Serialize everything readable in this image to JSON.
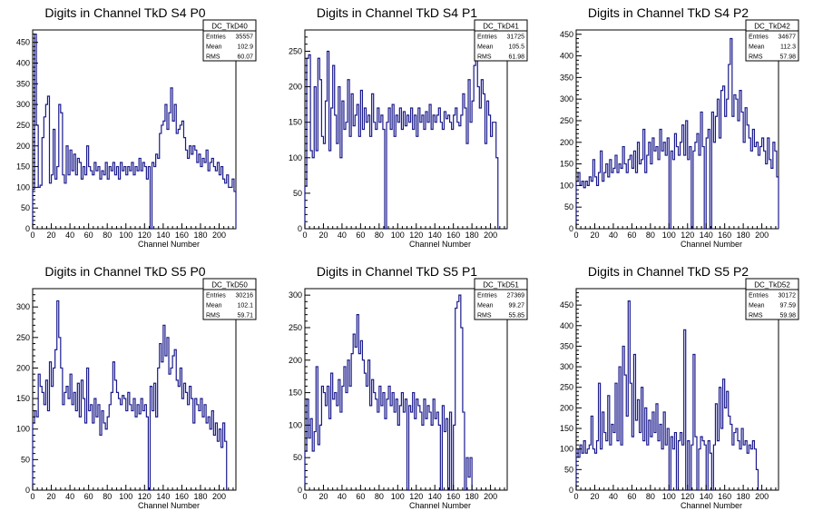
{
  "chart_data": [
    {
      "type": "histogram",
      "title": "Digits in Channel TkD S4 P0",
      "xlabel": "Channel Number",
      "ylabel": "",
      "xlim": [
        0,
        218
      ],
      "ylim": [
        0,
        480
      ],
      "xticks": [
        0,
        20,
        40,
        60,
        80,
        100,
        120,
        140,
        160,
        180,
        200
      ],
      "yticks": [
        0,
        50,
        100,
        150,
        200,
        250,
        300,
        350,
        400,
        450
      ],
      "bin_width": 2,
      "stats": {
        "name": "DC_TkD40",
        "rows": [
          [
            "Entries",
            "35557"
          ],
          [
            "Mean",
            "102.9"
          ],
          [
            "RMS",
            "60.07"
          ]
        ]
      },
      "values": [
        95,
        470,
        250,
        100,
        105,
        220,
        270,
        300,
        320,
        110,
        130,
        240,
        120,
        150,
        300,
        280,
        130,
        110,
        200,
        130,
        190,
        140,
        180,
        130,
        170,
        160,
        120,
        150,
        130,
        200,
        150,
        140,
        130,
        160,
        140,
        150,
        120,
        140,
        130,
        160,
        120,
        150,
        140,
        160,
        130,
        150,
        120,
        160,
        140,
        150,
        130,
        150,
        140,
        160,
        130,
        150,
        140,
        170,
        140,
        160,
        150,
        120,
        150,
        0,
        160,
        150,
        180,
        170,
        230,
        250,
        260,
        300,
        240,
        280,
        340,
        260,
        300,
        230,
        240,
        250,
        260,
        220,
        190,
        170,
        200,
        180,
        200,
        190,
        160,
        180,
        150,
        170,
        160,
        190,
        140,
        160,
        170,
        150,
        140,
        160,
        130,
        150,
        120,
        110,
        130,
        100,
        100,
        120,
        90
      ]
    },
    {
      "type": "histogram",
      "title": "Digits in Channel TkD S4 P1",
      "xlabel": "Channel Number",
      "ylabel": "",
      "xlim": [
        0,
        218
      ],
      "ylim": [
        0,
        280
      ],
      "xticks": [
        0,
        20,
        40,
        60,
        80,
        100,
        120,
        140,
        160,
        180,
        200
      ],
      "yticks": [
        0,
        50,
        100,
        150,
        200,
        250
      ],
      "bin_width": 2,
      "stats": {
        "name": "DC_TkD41",
        "rows": [
          [
            "Entries",
            "31725"
          ],
          [
            "Mean",
            "105.5"
          ],
          [
            "RMS",
            "61.98"
          ]
        ]
      },
      "values": [
        60,
        240,
        245,
        110,
        100,
        200,
        110,
        240,
        210,
        130,
        120,
        180,
        250,
        110,
        170,
        230,
        160,
        120,
        200,
        100,
        180,
        140,
        150,
        210,
        130,
        190,
        145,
        160,
        175,
        130,
        195,
        140,
        170,
        150,
        160,
        130,
        190,
        150,
        140,
        170,
        150,
        160,
        140,
        0,
        150,
        170,
        140,
        175,
        130,
        160,
        150,
        170,
        140,
        165,
        145,
        160,
        150,
        170,
        140,
        160,
        130,
        170,
        150,
        160,
        140,
        165,
        150,
        175,
        140,
        160,
        150,
        160,
        170,
        150,
        140,
        165,
        155,
        160,
        150,
        140,
        160,
        170,
        150,
        145,
        160,
        190,
        170,
        120,
        210,
        150,
        180,
        230,
        250,
        200,
        170,
        210,
        190,
        120,
        180,
        160,
        130,
        150,
        150,
        100,
        0
      ]
    },
    {
      "type": "histogram",
      "title": "Digits in Channel TkD S4 P2",
      "xlabel": "Channel Number",
      "ylabel": "",
      "xlim": [
        0,
        218
      ],
      "ylim": [
        0,
        460
      ],
      "xticks": [
        0,
        20,
        40,
        60,
        80,
        100,
        120,
        140,
        160,
        180,
        200
      ],
      "yticks": [
        0,
        50,
        100,
        150,
        200,
        250,
        300,
        350,
        400,
        450
      ],
      "bin_width": 2,
      "stats": {
        "name": "DC_TkD42",
        "rows": [
          [
            "Entries",
            "34677"
          ],
          [
            "Mean",
            "112.3"
          ],
          [
            "RMS",
            "57.98"
          ]
        ]
      },
      "values": [
        110,
        130,
        100,
        110,
        95,
        110,
        100,
        120,
        110,
        160,
        120,
        100,
        130,
        180,
        110,
        130,
        150,
        120,
        160,
        130,
        140,
        170,
        130,
        150,
        140,
        190,
        150,
        130,
        160,
        170,
        140,
        180,
        130,
        200,
        150,
        160,
        230,
        130,
        170,
        200,
        150,
        210,
        180,
        190,
        160,
        230,
        180,
        200,
        170,
        210,
        0,
        180,
        160,
        220,
        190,
        170,
        200,
        240,
        170,
        250,
        160,
        190,
        0,
        180,
        200,
        220,
        170,
        270,
        190,
        0,
        210,
        230,
        0,
        270,
        200,
        260,
        300,
        210,
        320,
        330,
        260,
        300,
        380,
        440,
        260,
        310,
        300,
        250,
        320,
        270,
        200,
        280,
        240,
        210,
        180,
        230,
        190,
        200,
        170,
        190,
        210,
        180,
        150,
        210,
        160,
        140,
        200,
        180,
        120,
        50
      ]
    },
    {
      "type": "histogram",
      "title": "Digits in Channel TkD S5 P0",
      "xlabel": "Channel Number",
      "ylabel": "",
      "xlim": [
        0,
        218
      ],
      "ylim": [
        0,
        330
      ],
      "xticks": [
        0,
        20,
        40,
        60,
        80,
        100,
        120,
        140,
        160,
        180,
        200
      ],
      "yticks": [
        0,
        50,
        100,
        150,
        200,
        250,
        300
      ],
      "bin_width": 2,
      "stats": {
        "name": "DC_TkD50",
        "rows": [
          [
            "Entries",
            "30216"
          ],
          [
            "Mean",
            "102.1"
          ],
          [
            "RMS",
            "59.71"
          ]
        ]
      },
      "values": [
        110,
        130,
        120,
        190,
        170,
        160,
        140,
        180,
        130,
        210,
        170,
        200,
        230,
        310,
        250,
        200,
        140,
        160,
        170,
        150,
        190,
        140,
        160,
        130,
        175,
        120,
        180,
        150,
        110,
        200,
        130,
        140,
        110,
        150,
        120,
        140,
        90,
        130,
        110,
        100,
        120,
        140,
        160,
        210,
        180,
        160,
        150,
        140,
        155,
        150,
        130,
        160,
        140,
        130,
        150,
        120,
        140,
        125,
        150,
        130,
        140,
        120,
        0,
        170,
        130,
        175,
        120,
        200,
        240,
        210,
        270,
        220,
        250,
        190,
        200,
        220,
        230,
        180,
        170,
        200,
        150,
        175,
        160,
        140,
        170,
        150,
        110,
        150,
        140,
        130,
        150,
        120,
        140,
        110,
        120,
        100,
        130,
        90,
        110,
        80,
        100,
        70,
        110,
        80
      ]
    },
    {
      "type": "histogram",
      "title": "Digits in Channel TkD S5 P1",
      "xlabel": "Channel Number",
      "ylabel": "",
      "xlim": [
        0,
        218
      ],
      "ylim": [
        0,
        310
      ],
      "xticks": [
        0,
        20,
        40,
        60,
        80,
        100,
        120,
        140,
        160,
        180,
        200
      ],
      "yticks": [
        0,
        50,
        100,
        150,
        200,
        250,
        300
      ],
      "bin_width": 2,
      "stats": {
        "name": "DC_TkD51",
        "rows": [
          [
            "Entries",
            "27369"
          ],
          [
            "Mean",
            "99.27"
          ],
          [
            "RMS",
            "55.85"
          ]
        ]
      },
      "values": [
        60,
        140,
        80,
        110,
        60,
        90,
        190,
        70,
        100,
        160,
        150,
        130,
        160,
        110,
        180,
        140,
        150,
        130,
        170,
        120,
        160,
        190,
        150,
        200,
        160,
        210,
        240,
        220,
        270,
        210,
        230,
        200,
        180,
        160,
        200,
        130,
        170,
        150,
        140,
        120,
        160,
        130,
        150,
        110,
        140,
        160,
        130,
        150,
        120,
        140,
        100,
        130,
        150,
        120,
        140,
        0,
        130,
        120,
        150,
        110,
        140,
        130,
        120,
        100,
        140,
        110,
        130,
        120,
        100,
        140,
        110,
        120,
        100,
        0,
        130,
        90,
        110,
        0,
        120,
        0,
        100,
        280,
        290,
        300,
        250,
        120,
        0,
        50,
        20,
        50,
        0
      ]
    },
    {
      "type": "histogram",
      "title": "Digits in Channel TkD S5 P2",
      "xlabel": "Channel Number",
      "ylabel": "",
      "xlim": [
        0,
        218
      ],
      "ylim": [
        0,
        490
      ],
      "xticks": [
        0,
        20,
        40,
        60,
        80,
        100,
        120,
        140,
        160,
        180,
        200
      ],
      "yticks": [
        0,
        50,
        100,
        150,
        200,
        250,
        300,
        350,
        400,
        450
      ],
      "bin_width": 2,
      "stats": {
        "name": "DC_TkD52",
        "rows": [
          [
            "Entries",
            "30172"
          ],
          [
            "Mean",
            "97.59"
          ],
          [
            "RMS",
            "59.98"
          ]
        ]
      },
      "values": [
        100,
        80,
        110,
        90,
        120,
        90,
        100,
        110,
        180,
        100,
        90,
        120,
        260,
        100,
        190,
        140,
        120,
        230,
        110,
        160,
        140,
        260,
        120,
        300,
        110,
        350,
        280,
        180,
        460,
        260,
        130,
        330,
        170,
        220,
        140,
        250,
        120,
        200,
        110,
        170,
        130,
        190,
        140,
        210,
        120,
        160,
        100,
        190,
        110,
        150,
        0,
        130,
        100,
        140,
        0,
        120,
        140,
        110,
        390,
        0,
        120,
        0,
        110,
        330,
        130,
        0,
        100,
        130,
        120,
        110,
        0,
        120,
        90,
        0,
        110,
        210,
        120,
        250,
        150,
        270,
        200,
        240,
        180,
        160,
        110,
        140,
        150,
        120,
        100,
        150,
        110,
        120,
        90,
        110,
        100,
        120,
        100,
        50
      ]
    }
  ]
}
